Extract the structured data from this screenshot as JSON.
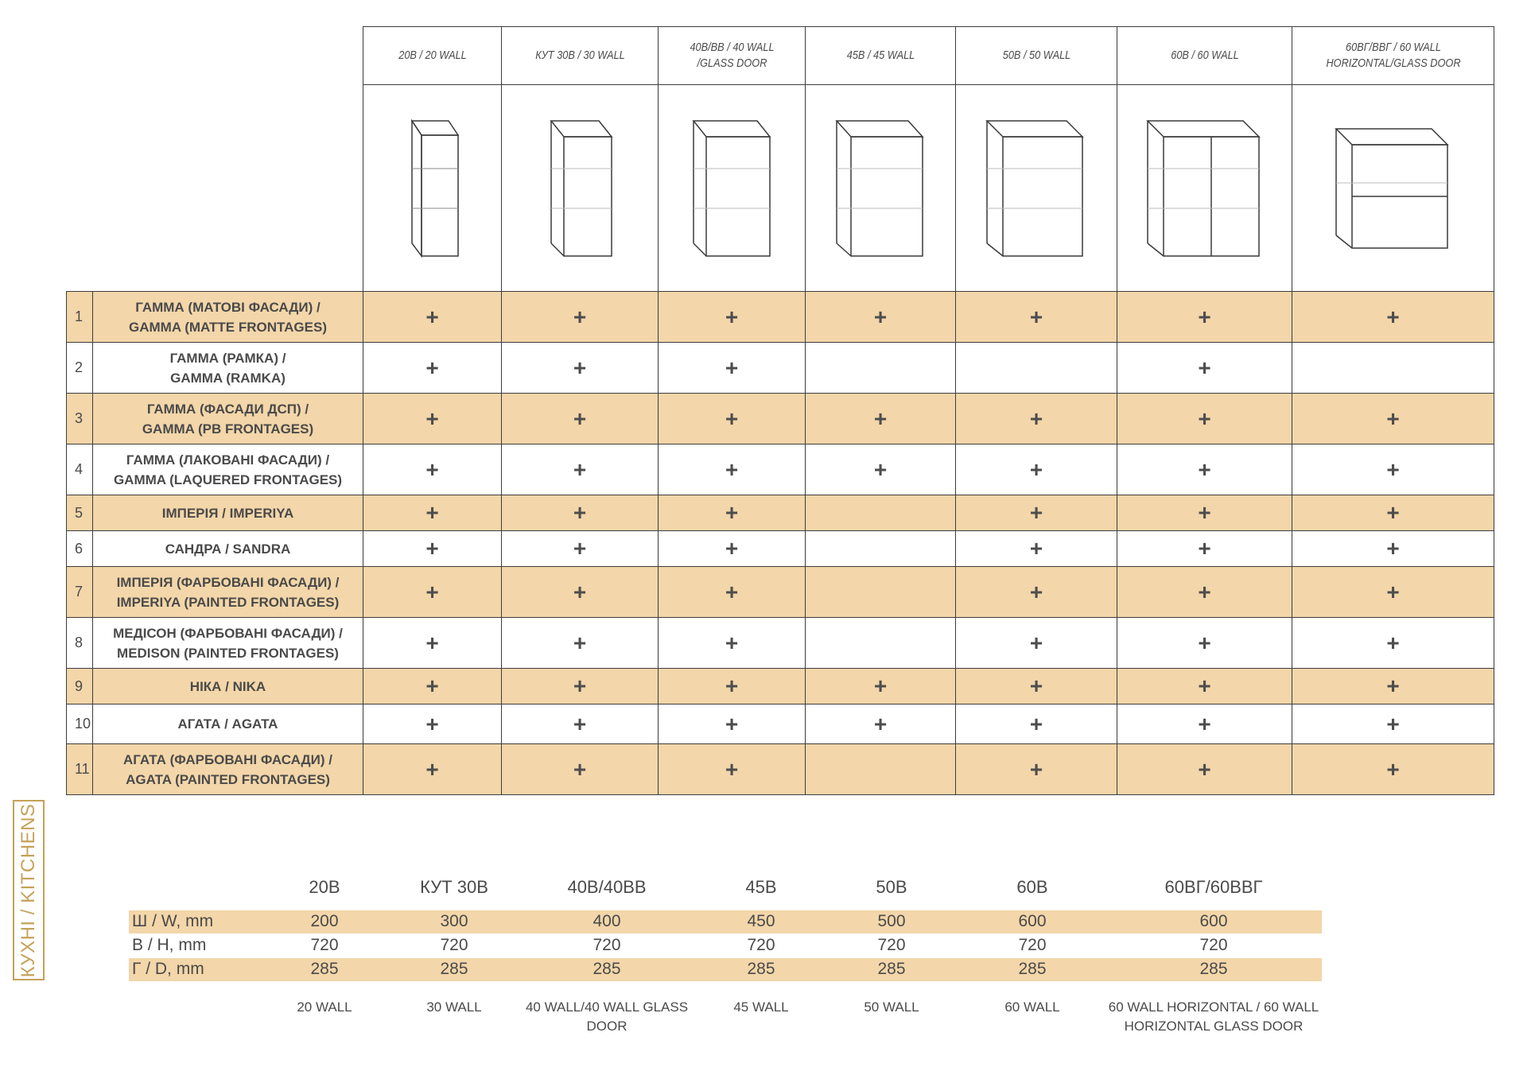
{
  "columns": [
    "20B / 20 WALL",
    "КУТ 30B / 30 WALL",
    "40B/BB / 40 WALL /GLASS DOOR",
    "45B / 45 WALL",
    "50B / 50 WALL",
    "60B / 60 WALL",
    "60BГ/BBГ / 60 WALL HORIZONTAL/GLASS DOOR"
  ],
  "cabinet_icons": [
    "cabinet-20-icon",
    "cabinet-30-icon",
    "cabinet-40-icon",
    "cabinet-45-icon",
    "cabinet-50-icon",
    "cabinet-60-icon",
    "cabinet-60-horizontal-icon"
  ],
  "mark": "+",
  "rows": [
    {
      "num": "1",
      "line1": "ГАММА (МАТОВІ ФАСАДИ) /",
      "line2": "GAMMA (MATTE FRONTAGES)",
      "avail": [
        1,
        1,
        1,
        1,
        1,
        1,
        1
      ]
    },
    {
      "num": "2",
      "line1": "ГАММА (РАМКА) /",
      "line2": "GAMMA (RAMKA)",
      "avail": [
        1,
        1,
        1,
        0,
        0,
        1,
        0
      ]
    },
    {
      "num": "3",
      "line1": "ГАММА (ФАСАДИ ДСП) /",
      "line2": "GAMMA (PB FRONTAGES)",
      "avail": [
        1,
        1,
        1,
        1,
        1,
        1,
        1
      ]
    },
    {
      "num": "4",
      "line1": "ГАММА (ЛАКОВАНІ ФАСАДИ) /",
      "line2": "GAMMA (LAQUERED FRONTAGES)",
      "avail": [
        1,
        1,
        1,
        1,
        1,
        1,
        1
      ]
    },
    {
      "num": "5",
      "line1": "ІМПЕРІЯ / IMPERIYA",
      "line2": "",
      "avail": [
        1,
        1,
        1,
        0,
        1,
        1,
        1
      ]
    },
    {
      "num": "6",
      "line1": "САНДРА / SANDRA",
      "line2": "",
      "avail": [
        1,
        1,
        1,
        0,
        1,
        1,
        1
      ]
    },
    {
      "num": "7",
      "line1": "ІМПЕРІЯ (ФАРБОВАНІ ФАСАДИ) /",
      "line2": "IMPERIYA (PAINTED FRONTAGES)",
      "avail": [
        1,
        1,
        1,
        0,
        1,
        1,
        1
      ]
    },
    {
      "num": "8",
      "line1": "МЕДІСОН (ФАРБОВАНІ ФАСАДИ) /",
      "line2": "MEDISON (PAINTED FRONTAGES)",
      "avail": [
        1,
        1,
        1,
        0,
        1,
        1,
        1
      ]
    },
    {
      "num": "9",
      "line1": "НІКА / NIKA",
      "line2": "",
      "avail": [
        1,
        1,
        1,
        1,
        1,
        1,
        1
      ]
    },
    {
      "num": "10",
      "line1": "АГАТА / AGATA",
      "line2": "",
      "avail": [
        1,
        1,
        1,
        1,
        1,
        1,
        1
      ]
    },
    {
      "num": "11",
      "line1": "АГАТА (ФАРБОВАНІ ФАСАДИ) /",
      "line2": "AGATA (PAINTED FRONTAGES)",
      "avail": [
        1,
        1,
        1,
        0,
        1,
        1,
        1
      ]
    }
  ],
  "side_label": "КУХНІ / KITCHENS",
  "dimensions": {
    "headers": [
      "20B",
      "КУТ 30B",
      "40B/40BB",
      "45B",
      "50B",
      "60B",
      "60BГ/60BBГ"
    ],
    "rows": [
      {
        "label": "Ш / W, mm",
        "values": [
          "200",
          "300",
          "400",
          "450",
          "500",
          "600",
          "600"
        ]
      },
      {
        "label": "В / H, mm",
        "values": [
          "720",
          "720",
          "720",
          "720",
          "720",
          "720",
          "720"
        ]
      },
      {
        "label": "Г / D, mm",
        "values": [
          "285",
          "285",
          "285",
          "285",
          "285",
          "285",
          "285"
        ]
      }
    ],
    "footer": [
      "20 WALL",
      "30 WALL",
      "40 WALL/40 WALL GLASS DOOR",
      "45 WALL",
      "50 WALL",
      "60 WALL",
      "60 WALL HORIZONTAL / 60 WALL HORIZONTAL GLASS DOOR"
    ]
  }
}
